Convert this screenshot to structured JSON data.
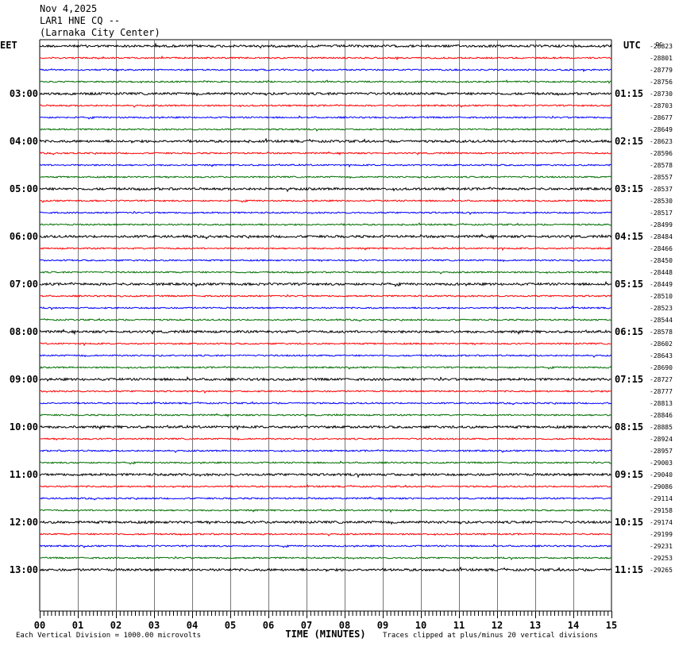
{
  "header": {
    "date": "Nov 4,2025",
    "station": "LAR1 HNE CQ --",
    "location": "(Larnaka City Center)"
  },
  "left_tz": "EET",
  "right_tz": "UTC",
  "dc_label": "DC",
  "chart_data": {
    "type": "line",
    "xlabel": "TIME (MINUTES)",
    "x_ticks": [
      "00",
      "01",
      "02",
      "03",
      "04",
      "05",
      "06",
      "07",
      "08",
      "09",
      "10",
      "11",
      "12",
      "13",
      "14",
      "15"
    ],
    "xlim": [
      0,
      15
    ],
    "trace_colors": [
      "#000000",
      "#ff0000",
      "#0000ff",
      "#007000"
    ],
    "left_hour_labels": [
      "03:00",
      "04:00",
      "05:00",
      "06:00",
      "07:00",
      "08:00",
      "09:00",
      "10:00",
      "11:00",
      "12:00",
      "13:00"
    ],
    "right_hour_labels": [
      "01:15",
      "02:15",
      "03:15",
      "04:15",
      "05:15",
      "06:15",
      "07:15",
      "08:15",
      "09:15",
      "10:15",
      "11:15"
    ],
    "dc_offsets": [
      "-28823",
      "-28801",
      "-28779",
      "-28756",
      "-28730",
      "-28703",
      "-28677",
      "-28649",
      "-28623",
      "-28596",
      "-28578",
      "-28557",
      "-28537",
      "-28530",
      "-28517",
      "-28499",
      "-28484",
      "-28466",
      "-28450",
      "-28448",
      "-28449",
      "-28510",
      "-28523",
      "-28544",
      "-28578",
      "-28602",
      "-28643",
      "-28690",
      "-28727",
      "-28777",
      "-28813",
      "-28846",
      "-28885",
      "-28924",
      "-28957",
      "-29003",
      "-29040",
      "-29086",
      "-29114",
      "-29158",
      "-29174",
      "-29199",
      "-29231",
      "-29253",
      "-29265"
    ]
  },
  "footer": {
    "vertical_division": "Each Vertical Division = 1000.00 microvolts",
    "clipping_note": "Traces clipped at plus/minus 20 vertical divisions"
  }
}
